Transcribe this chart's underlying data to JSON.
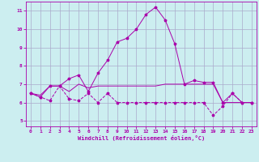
{
  "xlabel": "Windchill (Refroidissement éolien,°C)",
  "background_color": "#cceef0",
  "grid_color": "#aaaacc",
  "line_color": "#aa00aa",
  "xlim": [
    -0.5,
    23.5
  ],
  "ylim": [
    4.7,
    11.5
  ],
  "yticks": [
    5,
    6,
    7,
    8,
    9,
    10,
    11
  ],
  "xticks": [
    0,
    1,
    2,
    3,
    4,
    5,
    6,
    7,
    8,
    9,
    10,
    11,
    12,
    13,
    14,
    15,
    16,
    17,
    18,
    19,
    20,
    21,
    22,
    23
  ],
  "line1_x": [
    0,
    1,
    2,
    3,
    4,
    5,
    6,
    7,
    8,
    9,
    10,
    11,
    12,
    13,
    14,
    15,
    16,
    17,
    18,
    19,
    20,
    21,
    22,
    23
  ],
  "line1_y": [
    6.5,
    6.3,
    6.9,
    6.9,
    7.3,
    7.5,
    6.6,
    7.6,
    8.3,
    9.3,
    9.5,
    10.0,
    10.8,
    11.2,
    10.5,
    9.2,
    7.0,
    7.2,
    7.1,
    7.1,
    6.0,
    6.5,
    6.0,
    6.0
  ],
  "line2_x": [
    0,
    1,
    2,
    3,
    4,
    5,
    6,
    7,
    8,
    9,
    10,
    11,
    12,
    13,
    14,
    15,
    16,
    17,
    18,
    19,
    20,
    21,
    22,
    23
  ],
  "line2_y": [
    6.5,
    6.3,
    6.1,
    6.9,
    6.2,
    6.1,
    6.5,
    6.0,
    6.5,
    6.0,
    6.0,
    6.0,
    6.0,
    6.0,
    6.0,
    6.0,
    6.0,
    6.0,
    6.0,
    5.3,
    5.8,
    6.5,
    6.0,
    6.0
  ],
  "line3_x": [
    0,
    1,
    2,
    3,
    4,
    5,
    6,
    7,
    8,
    9,
    10,
    11,
    12,
    13,
    14,
    15,
    16,
    17,
    18,
    19,
    20,
    21,
    22,
    23
  ],
  "line3_y": [
    6.5,
    6.4,
    6.9,
    6.9,
    6.6,
    7.0,
    6.8,
    6.9,
    6.9,
    6.9,
    6.9,
    6.9,
    6.9,
    6.9,
    7.0,
    7.0,
    7.0,
    7.0,
    7.0,
    7.0,
    6.0,
    6.0,
    6.0,
    6.0
  ]
}
